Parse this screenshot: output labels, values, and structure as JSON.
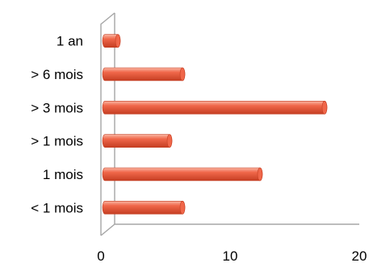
{
  "chart_data": {
    "type": "bar",
    "orientation": "horizontal",
    "style": "3d-cylinder",
    "categories": [
      "< 1 mois",
      "1 mois",
      "> 1 mois",
      "> 3 mois",
      "> 6 mois",
      "1 an"
    ],
    "values": [
      6,
      12,
      5,
      17,
      6,
      1
    ],
    "xlim": [
      0,
      20
    ],
    "x_ticks": [
      "0",
      "10",
      "20"
    ],
    "grid": false,
    "legend": "none",
    "colors": {
      "bar": "#f0674a",
      "bar_light": "#f9b7a4",
      "bar_dark": "#c53e22",
      "axis": "#a6a6a6"
    }
  }
}
